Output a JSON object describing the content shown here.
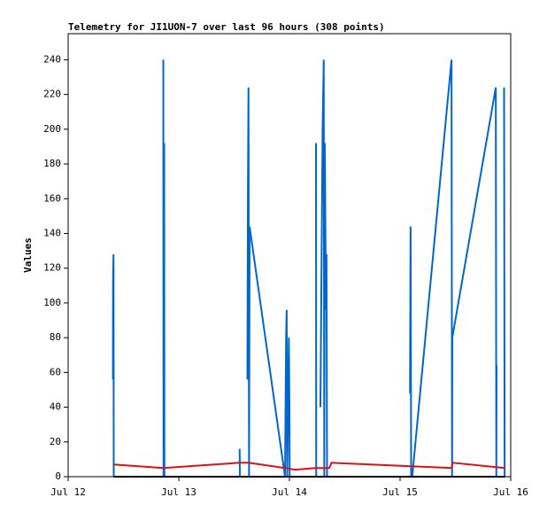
{
  "chart_data": {
    "type": "line",
    "title": "Telemetry for JI1UON-7 over last 96 hours (308 points)",
    "y_label": "Values",
    "xlim": [
      12,
      16
    ],
    "xticks": [
      {
        "value": 12,
        "label": "Jul 12"
      },
      {
        "value": 13,
        "label": "Jul 13"
      },
      {
        "value": 14,
        "label": "Jul 14"
      },
      {
        "value": 15,
        "label": "Jul 15"
      },
      {
        "value": 16,
        "label": "Jul 16"
      }
    ],
    "ylim": [
      0,
      255
    ],
    "yticks": [
      0,
      20,
      40,
      60,
      80,
      100,
      120,
      140,
      160,
      180,
      200,
      220,
      240
    ],
    "series": [
      {
        "color": "#0066cc",
        "x": [
          12.405,
          12.406,
          12.41,
          12.412,
          12.6,
          12.86,
          12.862,
          12.868,
          12.87,
          13.2,
          13.55,
          13.552,
          13.6,
          13.62,
          13.625,
          13.63,
          13.635,
          13.64,
          13.96,
          13.97,
          13.975,
          13.98,
          13.995,
          14.0,
          14.002,
          14.1,
          14.24,
          14.242,
          14.26,
          14.28,
          14.29,
          14.3,
          14.31,
          14.315,
          14.32,
          14.33,
          14.335,
          14.34,
          14.7,
          15.09,
          15.095,
          15.1,
          15.11,
          15.465,
          15.47,
          15.472,
          15.865,
          15.87,
          15.872,
          15.9,
          15.94,
          15.945
        ],
        "values": [
          56,
          112,
          128,
          0,
          null,
          240,
          0,
          192,
          0,
          null,
          16,
          0,
          null,
          56,
          168,
          224,
          0,
          144,
          0,
          80,
          96,
          0,
          80,
          40,
          0,
          null,
          192,
          0,
          null,
          40,
          120,
          200,
          240,
          0,
          192,
          96,
          128,
          0,
          null,
          48,
          144,
          0,
          0,
          240,
          0,
          80,
          224,
          0,
          64,
          null,
          224,
          0
        ]
      },
      {
        "color": "#e01010",
        "x": [
          12.41,
          12.86,
          13.55,
          13.63,
          13.96,
          14.05,
          14.24,
          14.36,
          14.38,
          15.1,
          15.465,
          15.475,
          15.95
        ],
        "values": [
          7,
          5,
          8,
          8,
          5,
          4,
          5,
          5,
          8,
          6,
          5,
          8,
          5
        ]
      },
      {
        "color": "#000000",
        "x": [
          12.41,
          15.95
        ],
        "values": [
          0,
          0
        ]
      }
    ]
  }
}
